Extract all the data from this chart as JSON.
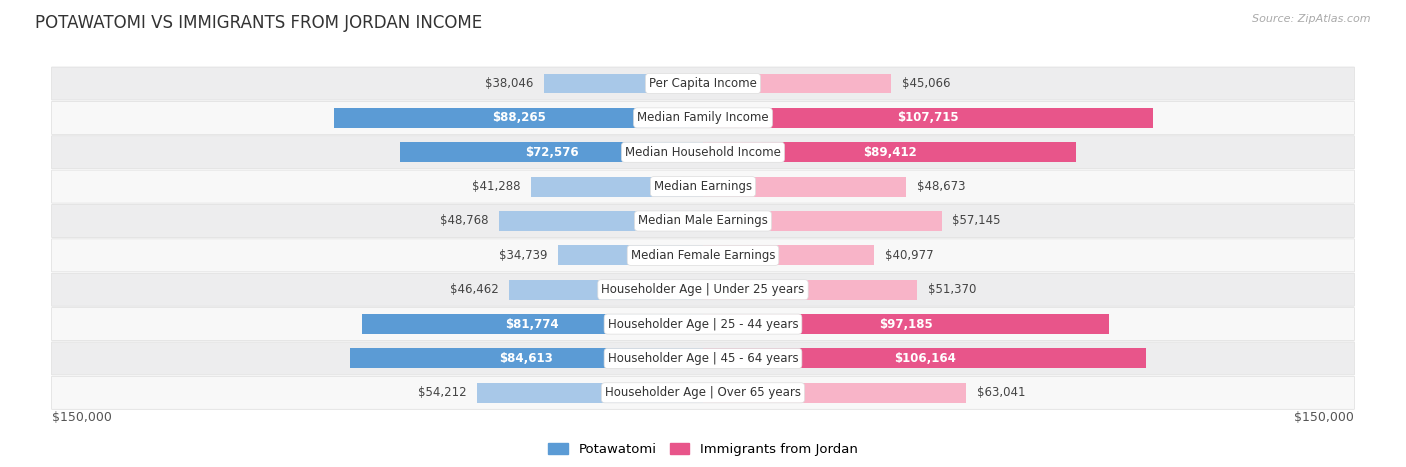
{
  "title": "POTAWATOMI VS IMMIGRANTS FROM JORDAN INCOME",
  "source": "Source: ZipAtlas.com",
  "categories": [
    "Per Capita Income",
    "Median Family Income",
    "Median Household Income",
    "Median Earnings",
    "Median Male Earnings",
    "Median Female Earnings",
    "Householder Age | Under 25 years",
    "Householder Age | 25 - 44 years",
    "Householder Age | 45 - 64 years",
    "Householder Age | Over 65 years"
  ],
  "potawatomi_values": [
    38046,
    88265,
    72576,
    41288,
    48768,
    34739,
    46462,
    81774,
    84613,
    54212
  ],
  "jordan_values": [
    45066,
    107715,
    89412,
    48673,
    57145,
    40977,
    51370,
    97185,
    106164,
    63041
  ],
  "potawatomi_labels": [
    "$38,046",
    "$88,265",
    "$72,576",
    "$41,288",
    "$48,768",
    "$34,739",
    "$46,462",
    "$81,774",
    "$84,613",
    "$54,212"
  ],
  "jordan_labels": [
    "$45,066",
    "$107,715",
    "$89,412",
    "$48,673",
    "$57,145",
    "$40,977",
    "$51,370",
    "$97,185",
    "$106,164",
    "$63,041"
  ],
  "potawatomi_color_light": "#a8c8e8",
  "potawatomi_color_dark": "#5b9bd5",
  "jordan_color_light": "#f8b4c8",
  "jordan_color_dark": "#e8558a",
  "pot_dark_threshold": 60000,
  "jor_dark_threshold": 80000,
  "max_value": 150000,
  "x_label_left": "$150,000",
  "x_label_right": "$150,000",
  "legend_potawatomi": "Potawatomi",
  "legend_jordan": "Immigrants from Jordan",
  "bar_height": 0.58,
  "row_bg_even": "#ededee",
  "row_bg_odd": "#f8f8f8",
  "background_color": "#ffffff",
  "label_fontsize": 8.5,
  "cat_fontsize": 8.5,
  "title_fontsize": 12
}
